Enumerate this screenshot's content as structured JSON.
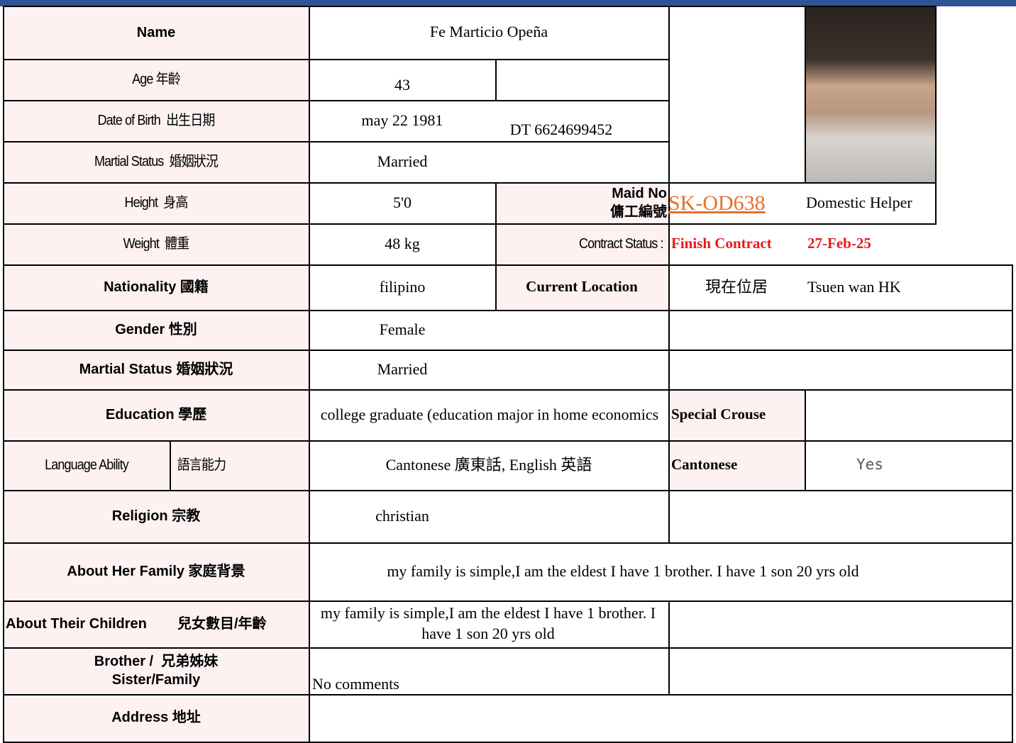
{
  "name_label": "Name",
  "name": "Fe Marticio Opeña",
  "age_label": "Age 年齡",
  "age": "43",
  "dob_label": "Date of Birth  出生日期",
  "dob": "may 22 1981",
  "dt": "DT 6624699452",
  "marital_label": "Martial Status  婚姻狀況",
  "marital": "Married",
  "height_label": "Height  身高",
  "height": "5'0",
  "maid_no_label": "Maid No\n傭工編號",
  "maid_no": "SK-OD638",
  "job": "Domestic Helper",
  "weight_label": "Weight  體重",
  "weight": "48 kg",
  "contract_label": "Contract Status :",
  "contract_status": "Finish Contract",
  "contract_date": "27-Feb-25",
  "nationality_label": "Nationality 國籍",
  "nationality": "filipino",
  "location_label": "Current Location",
  "location_label_zh": "現在位居",
  "location": "Tsuen wan HK",
  "gender_label": "Gender 性別",
  "gender": "Female",
  "marital2_label": "Martial Status 婚姻狀況",
  "marital2": "Married",
  "education_label": "Education 學歷",
  "education": "college graduate (education major in home economics",
  "special_label": "Special Crouse",
  "language_label": "Language Ability",
  "language_label_zh": "語言能力",
  "language": "Cantonese 廣東話, English 英語",
  "cantonese_label": "Cantonese",
  "cantonese": "Yes",
  "religion_label": "Religion 宗教",
  "religion": "christian",
  "family_label": "About Her Family 家庭背景",
  "family": "my family is simple,I am the eldest I have 1 brother. I have 1 son 20 yrs old",
  "children_label": "About Their Children",
  "children_label_zh": "兒女數目/年齡",
  "children": "my family is simple,I am the eldest I have 1 brother. I have 1 son 20 yrs old",
  "siblings_label": "Brother /  兄弟姊妹\nSister/Family",
  "siblings": "No comments",
  "address_label": "Address 地址"
}
